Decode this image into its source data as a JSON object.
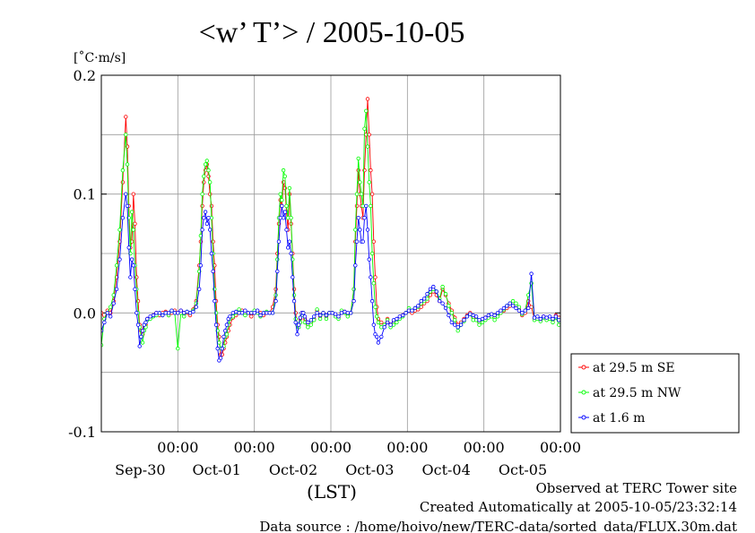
{
  "chart_data": {
    "type": "line",
    "title": "<w’ T’> / 2005-10-05",
    "ylabel": "[˚C·m/s]",
    "xlabel": "(LST)",
    "ylim": [
      -0.1,
      0.2
    ],
    "xlim": [
      -1.0,
      5.0
    ],
    "grid": true,
    "legend_position": "right",
    "yticks": [
      {
        "value": -0.1,
        "label": "-0.1"
      },
      {
        "value": 0.0,
        "label": "0.0"
      },
      {
        "value": 0.1,
        "label": "0.1"
      },
      {
        "value": 0.2,
        "label": "0.2"
      }
    ],
    "xticks": [
      {
        "value": 0,
        "time": "00:00",
        "date": "Sep-30"
      },
      {
        "value": 1,
        "time": "00:00",
        "date": "Oct-01"
      },
      {
        "value": 2,
        "time": "00:00",
        "date": "Oct-02"
      },
      {
        "value": 3,
        "time": "00:00",
        "date": "Oct-03"
      },
      {
        "value": 4,
        "time": "00:00",
        "date": "Oct-04"
      },
      {
        "value": 5,
        "time": "00:00",
        "date": "Oct-05"
      }
    ],
    "series": [
      {
        "name": "at 29.5 m SE",
        "color": "#ff0000",
        "x": [
          -1.0,
          -0.96,
          -0.92,
          -0.88,
          -0.84,
          -0.8,
          -0.76,
          -0.72,
          -0.68,
          -0.66,
          -0.64,
          -0.62,
          -0.6,
          -0.58,
          -0.56,
          -0.54,
          -0.52,
          -0.5,
          -0.48,
          -0.46,
          -0.44,
          -0.42,
          -0.4,
          -0.36,
          -0.32,
          -0.28,
          -0.24,
          -0.2,
          -0.16,
          -0.12,
          -0.08,
          -0.04,
          0.0,
          0.04,
          0.08,
          0.12,
          0.16,
          0.2,
          0.24,
          0.28,
          0.3,
          0.32,
          0.34,
          0.36,
          0.38,
          0.4,
          0.42,
          0.44,
          0.46,
          0.48,
          0.5,
          0.52,
          0.54,
          0.56,
          0.58,
          0.6,
          0.62,
          0.64,
          0.66,
          0.68,
          0.72,
          0.76,
          0.8,
          0.84,
          0.88,
          0.92,
          0.96,
          1.0,
          1.04,
          1.08,
          1.12,
          1.16,
          1.2,
          1.24,
          1.28,
          1.3,
          1.32,
          1.34,
          1.36,
          1.38,
          1.4,
          1.42,
          1.44,
          1.46,
          1.48,
          1.5,
          1.52,
          1.54,
          1.56,
          1.58,
          1.6,
          1.62,
          1.64,
          1.66,
          1.7,
          1.74,
          1.78,
          1.82,
          1.86,
          1.9,
          1.94,
          1.98,
          2.02,
          2.06,
          2.1,
          2.14,
          2.18,
          2.22,
          2.26,
          2.3,
          2.32,
          2.34,
          2.36,
          2.38,
          2.4,
          2.42,
          2.44,
          2.46,
          2.48,
          2.5,
          2.52,
          2.54,
          2.56,
          2.58,
          2.6,
          2.62,
          2.66,
          2.7,
          2.74,
          2.78,
          2.82,
          2.86,
          2.9,
          2.94,
          2.98,
          3.02,
          3.06,
          3.1,
          3.14,
          3.18,
          3.22,
          3.26,
          3.3,
          3.34,
          3.38,
          3.42,
          3.46,
          3.5,
          3.54,
          3.58,
          3.62,
          3.66,
          3.7,
          3.74,
          3.78,
          3.82,
          3.86,
          3.9,
          3.94,
          3.98,
          4.02,
          4.06,
          4.1,
          4.14,
          4.18,
          4.22,
          4.26,
          4.3,
          4.34,
          4.38,
          4.42,
          4.46,
          4.5,
          4.54,
          4.58,
          4.62,
          4.66,
          4.7,
          4.74,
          4.78,
          4.82,
          4.86,
          4.9,
          4.94,
          4.98
        ],
        "values": [
          0.0,
          -0.005,
          0.002,
          0.0,
          0.01,
          0.03,
          0.06,
          0.11,
          0.165,
          0.14,
          0.09,
          0.055,
          0.06,
          0.1,
          0.075,
          0.03,
          0.01,
          -0.01,
          -0.015,
          -0.018,
          -0.012,
          -0.01,
          -0.005,
          -0.004,
          -0.002,
          0.0,
          -0.002,
          0.0,
          0.001,
          -0.002,
          0.0,
          0.002,
          0.0,
          0.002,
          0.0,
          0.0,
          -0.002,
          0.003,
          0.01,
          0.04,
          0.06,
          0.09,
          0.11,
          0.12,
          0.125,
          0.115,
          0.1,
          0.09,
          0.06,
          0.04,
          0.01,
          -0.01,
          -0.02,
          -0.035,
          -0.035,
          -0.03,
          -0.025,
          -0.02,
          -0.015,
          -0.01,
          -0.004,
          -0.002,
          0.0,
          0.002,
          0.0,
          0.0,
          -0.003,
          0.0,
          0.001,
          0.0,
          -0.002,
          0.0,
          0.0,
          0.005,
          0.02,
          0.05,
          0.075,
          0.095,
          0.09,
          0.11,
          0.105,
          0.085,
          0.07,
          0.1,
          0.075,
          0.05,
          0.02,
          0.0,
          -0.01,
          -0.01,
          -0.005,
          0.0,
          0.0,
          -0.005,
          -0.01,
          -0.008,
          -0.005,
          0.002,
          -0.003,
          0.0,
          -0.003,
          0.0,
          0.0,
          -0.002,
          -0.004,
          0.0,
          0.001,
          -0.002,
          0.0,
          0.02,
          0.06,
          0.09,
          0.12,
          0.1,
          0.09,
          0.08,
          0.12,
          0.15,
          0.18,
          0.15,
          0.12,
          0.1,
          0.06,
          0.03,
          0.005,
          -0.005,
          -0.008,
          -0.01,
          -0.005,
          -0.01,
          -0.008,
          -0.006,
          -0.004,
          -0.002,
          0.0,
          0.003,
          0.0,
          0.002,
          0.003,
          0.005,
          0.008,
          0.01,
          0.015,
          0.018,
          0.015,
          0.01,
          0.02,
          0.015,
          0.008,
          0.002,
          -0.004,
          -0.01,
          -0.008,
          -0.005,
          -0.002,
          0.0,
          -0.004,
          -0.005,
          -0.008,
          -0.006,
          -0.004,
          -0.003,
          -0.002,
          -0.004,
          -0.002,
          0.0,
          0.002,
          0.004,
          0.006,
          0.008,
          0.006,
          0.003,
          -0.002,
          0.0,
          0.01,
          0.005,
          -0.005,
          -0.004,
          -0.006,
          -0.003,
          -0.005,
          -0.004,
          -0.006,
          -0.002,
          -0.004
        ]
      },
      {
        "name": "at 29.5 m NW",
        "color": "#00ff00",
        "x": [
          -1.0,
          -0.96,
          -0.92,
          -0.88,
          -0.84,
          -0.8,
          -0.76,
          -0.72,
          -0.68,
          -0.66,
          -0.64,
          -0.62,
          -0.6,
          -0.58,
          -0.56,
          -0.54,
          -0.52,
          -0.5,
          -0.48,
          -0.46,
          -0.44,
          -0.42,
          -0.4,
          -0.36,
          -0.32,
          -0.28,
          -0.24,
          -0.2,
          -0.16,
          -0.12,
          -0.08,
          -0.04,
          0.0,
          0.04,
          0.08,
          0.12,
          0.16,
          0.2,
          0.24,
          0.28,
          0.3,
          0.32,
          0.34,
          0.36,
          0.38,
          0.4,
          0.42,
          0.44,
          0.46,
          0.48,
          0.5,
          0.52,
          0.54,
          0.56,
          0.58,
          0.6,
          0.62,
          0.64,
          0.66,
          0.68,
          0.72,
          0.76,
          0.8,
          0.84,
          0.88,
          0.92,
          0.96,
          1.0,
          1.04,
          1.08,
          1.12,
          1.16,
          1.2,
          1.24,
          1.28,
          1.3,
          1.32,
          1.34,
          1.36,
          1.38,
          1.4,
          1.42,
          1.44,
          1.46,
          1.48,
          1.5,
          1.52,
          1.54,
          1.56,
          1.58,
          1.6,
          1.62,
          1.64,
          1.66,
          1.7,
          1.74,
          1.78,
          1.82,
          1.86,
          1.9,
          1.94,
          1.98,
          2.02,
          2.06,
          2.1,
          2.14,
          2.18,
          2.22,
          2.26,
          2.3,
          2.32,
          2.34,
          2.36,
          2.38,
          2.4,
          2.42,
          2.44,
          2.46,
          2.48,
          2.5,
          2.52,
          2.54,
          2.56,
          2.58,
          2.6,
          2.62,
          2.66,
          2.7,
          2.74,
          2.78,
          2.82,
          2.86,
          2.9,
          2.94,
          2.98,
          3.02,
          3.06,
          3.1,
          3.14,
          3.18,
          3.22,
          3.26,
          3.3,
          3.34,
          3.38,
          3.42,
          3.46,
          3.5,
          3.54,
          3.58,
          3.62,
          3.66,
          3.7,
          3.74,
          3.78,
          3.82,
          3.86,
          3.9,
          3.94,
          3.98,
          4.02,
          4.06,
          4.1,
          4.14,
          4.18,
          4.22,
          4.26,
          4.3,
          4.34,
          4.38,
          4.42,
          4.46,
          4.5,
          4.54,
          4.58,
          4.62,
          4.66,
          4.7,
          4.74,
          4.78,
          4.82,
          4.86,
          4.9,
          4.94,
          4.98
        ],
        "values": [
          -0.027,
          -0.005,
          0.0,
          0.005,
          0.015,
          0.04,
          0.07,
          0.12,
          0.15,
          0.125,
          0.08,
          0.05,
          0.085,
          0.07,
          0.04,
          0.02,
          0.0,
          -0.012,
          -0.02,
          -0.025,
          -0.015,
          -0.012,
          -0.006,
          -0.005,
          -0.003,
          -0.002,
          0.0,
          -0.002,
          0.0,
          -0.002,
          0.002,
          0.0,
          -0.03,
          0.0,
          -0.003,
          0.001,
          0.0,
          0.002,
          0.008,
          0.035,
          0.065,
          0.1,
          0.115,
          0.125,
          0.128,
          0.12,
          0.11,
          0.08,
          0.05,
          0.02,
          0.0,
          -0.015,
          -0.025,
          -0.03,
          -0.03,
          -0.028,
          -0.02,
          -0.018,
          -0.01,
          -0.005,
          -0.003,
          0.0,
          0.003,
          0.0,
          -0.002,
          0.0,
          0.0,
          0.002,
          0.0,
          -0.003,
          0.0,
          0.001,
          0.0,
          0.0,
          0.015,
          0.045,
          0.08,
          0.1,
          0.095,
          0.12,
          0.115,
          0.09,
          0.08,
          0.105,
          0.08,
          0.045,
          0.015,
          -0.005,
          -0.01,
          -0.012,
          -0.008,
          -0.002,
          0.0,
          -0.008,
          -0.012,
          -0.01,
          -0.006,
          0.003,
          -0.005,
          0.0,
          -0.005,
          0.0,
          0.0,
          -0.003,
          -0.005,
          0.002,
          0.0,
          -0.003,
          0.0,
          0.02,
          0.07,
          0.1,
          0.13,
          0.11,
          0.1,
          0.09,
          0.155,
          0.17,
          0.14,
          0.11,
          0.09,
          0.05,
          0.025,
          0.005,
          -0.003,
          -0.008,
          -0.012,
          -0.01,
          -0.006,
          -0.012,
          -0.01,
          -0.008,
          -0.005,
          -0.003,
          0.0,
          0.004,
          0.002,
          0.004,
          0.005,
          0.008,
          0.01,
          0.012,
          0.018,
          0.02,
          0.018,
          0.012,
          0.022,
          0.016,
          0.006,
          0.0,
          -0.006,
          -0.015,
          -0.01,
          -0.007,
          -0.003,
          -0.001,
          -0.006,
          -0.006,
          -0.01,
          -0.008,
          -0.006,
          -0.004,
          -0.003,
          -0.006,
          -0.003,
          0.0,
          0.003,
          0.006,
          0.008,
          0.01,
          0.008,
          0.005,
          -0.001,
          0.002,
          0.015,
          0.025,
          -0.006,
          -0.005,
          -0.007,
          -0.004,
          -0.006,
          -0.005,
          -0.008,
          -0.004,
          -0.01
        ]
      },
      {
        "name": "at 1.6 m",
        "color": "#0000ff",
        "x": [
          -1.0,
          -0.96,
          -0.92,
          -0.88,
          -0.84,
          -0.8,
          -0.76,
          -0.72,
          -0.68,
          -0.66,
          -0.64,
          -0.62,
          -0.6,
          -0.58,
          -0.56,
          -0.54,
          -0.52,
          -0.5,
          -0.48,
          -0.46,
          -0.44,
          -0.42,
          -0.4,
          -0.36,
          -0.32,
          -0.28,
          -0.24,
          -0.2,
          -0.16,
          -0.12,
          -0.08,
          -0.04,
          0.0,
          0.04,
          0.08,
          0.12,
          0.16,
          0.2,
          0.24,
          0.28,
          0.3,
          0.32,
          0.34,
          0.36,
          0.38,
          0.4,
          0.42,
          0.44,
          0.46,
          0.48,
          0.5,
          0.52,
          0.54,
          0.56,
          0.58,
          0.6,
          0.62,
          0.64,
          0.66,
          0.68,
          0.72,
          0.76,
          0.8,
          0.84,
          0.88,
          0.92,
          0.96,
          1.0,
          1.04,
          1.08,
          1.12,
          1.16,
          1.2,
          1.24,
          1.28,
          1.3,
          1.32,
          1.34,
          1.36,
          1.38,
          1.4,
          1.42,
          1.44,
          1.46,
          1.48,
          1.5,
          1.52,
          1.54,
          1.56,
          1.58,
          1.6,
          1.62,
          1.64,
          1.66,
          1.7,
          1.74,
          1.78,
          1.82,
          1.86,
          1.9,
          1.94,
          1.98,
          2.02,
          2.06,
          2.1,
          2.14,
          2.18,
          2.22,
          2.26,
          2.3,
          2.32,
          2.34,
          2.36,
          2.38,
          2.4,
          2.42,
          2.44,
          2.46,
          2.48,
          2.5,
          2.52,
          2.54,
          2.56,
          2.58,
          2.6,
          2.62,
          2.66,
          2.7,
          2.74,
          2.78,
          2.82,
          2.86,
          2.9,
          2.94,
          2.98,
          3.02,
          3.06,
          3.1,
          3.14,
          3.18,
          3.22,
          3.26,
          3.3,
          3.34,
          3.38,
          3.42,
          3.46,
          3.5,
          3.54,
          3.58,
          3.62,
          3.66,
          3.7,
          3.74,
          3.78,
          3.82,
          3.86,
          3.9,
          3.94,
          3.98,
          4.02,
          4.06,
          4.1,
          4.14,
          4.18,
          4.22,
          4.26,
          4.3,
          4.34,
          4.38,
          4.42,
          4.46,
          4.5,
          4.54,
          4.58,
          4.62,
          4.66,
          4.7,
          4.74,
          4.78,
          4.82,
          4.86,
          4.9,
          4.94,
          4.98
        ],
        "values": [
          -0.015,
          -0.008,
          0.0,
          -0.003,
          0.008,
          0.02,
          0.045,
          0.08,
          0.1,
          0.09,
          0.055,
          0.03,
          0.045,
          0.04,
          0.02,
          0.0,
          -0.01,
          -0.028,
          -0.02,
          -0.015,
          -0.01,
          -0.008,
          -0.005,
          -0.003,
          -0.002,
          0.0,
          0.0,
          -0.002,
          0.0,
          0.0,
          0.002,
          0.0,
          0.0,
          0.002,
          0.0,
          0.001,
          0.0,
          0.001,
          0.005,
          0.02,
          0.04,
          0.07,
          0.08,
          0.085,
          0.075,
          0.08,
          0.07,
          0.05,
          0.035,
          0.01,
          -0.01,
          -0.03,
          -0.04,
          -0.038,
          -0.03,
          -0.02,
          -0.015,
          -0.01,
          -0.005,
          -0.003,
          0.0,
          0.001,
          0.0,
          0.0,
          0.002,
          0.0,
          0.0,
          0.0,
          0.002,
          -0.002,
          0.0,
          0.0,
          0.0,
          0.0,
          0.01,
          0.035,
          0.06,
          0.08,
          0.09,
          0.08,
          0.085,
          0.07,
          0.055,
          0.06,
          0.05,
          0.03,
          0.01,
          -0.008,
          -0.018,
          -0.01,
          -0.004,
          0.0,
          0.0,
          -0.003,
          -0.008,
          -0.006,
          -0.003,
          0.0,
          -0.002,
          0.0,
          -0.002,
          0.0,
          0.0,
          -0.001,
          -0.003,
          0.0,
          0.001,
          0.0,
          0.0,
          0.01,
          0.04,
          0.06,
          0.08,
          0.07,
          0.06,
          0.06,
          0.08,
          0.09,
          0.07,
          0.045,
          0.03,
          0.01,
          -0.01,
          -0.018,
          -0.02,
          -0.025,
          -0.02,
          -0.012,
          -0.008,
          -0.01,
          -0.006,
          -0.005,
          -0.003,
          -0.002,
          0.0,
          0.002,
          0.002,
          0.004,
          0.006,
          0.01,
          0.012,
          0.016,
          0.02,
          0.022,
          0.018,
          0.01,
          0.008,
          0.004,
          -0.002,
          -0.008,
          -0.01,
          -0.012,
          -0.01,
          -0.006,
          -0.003,
          -0.001,
          -0.002,
          -0.003,
          -0.006,
          -0.005,
          -0.004,
          -0.002,
          -0.001,
          -0.002,
          0.0,
          0.002,
          0.004,
          0.006,
          0.008,
          0.006,
          0.004,
          0.002,
          0.0,
          0.002,
          0.004,
          0.033,
          -0.004,
          -0.003,
          -0.005,
          -0.003,
          -0.004,
          -0.003,
          -0.005,
          -0.003,
          -0.006
        ]
      }
    ]
  },
  "footer": {
    "line1": "Observed at TERC Tower site",
    "line2": "Created Automatically at 2005-10-05/23:32:14",
    "line3": "Data source : /home/hoivo/new/TERC-data/sorted_data/FLUX.30m.dat"
  }
}
